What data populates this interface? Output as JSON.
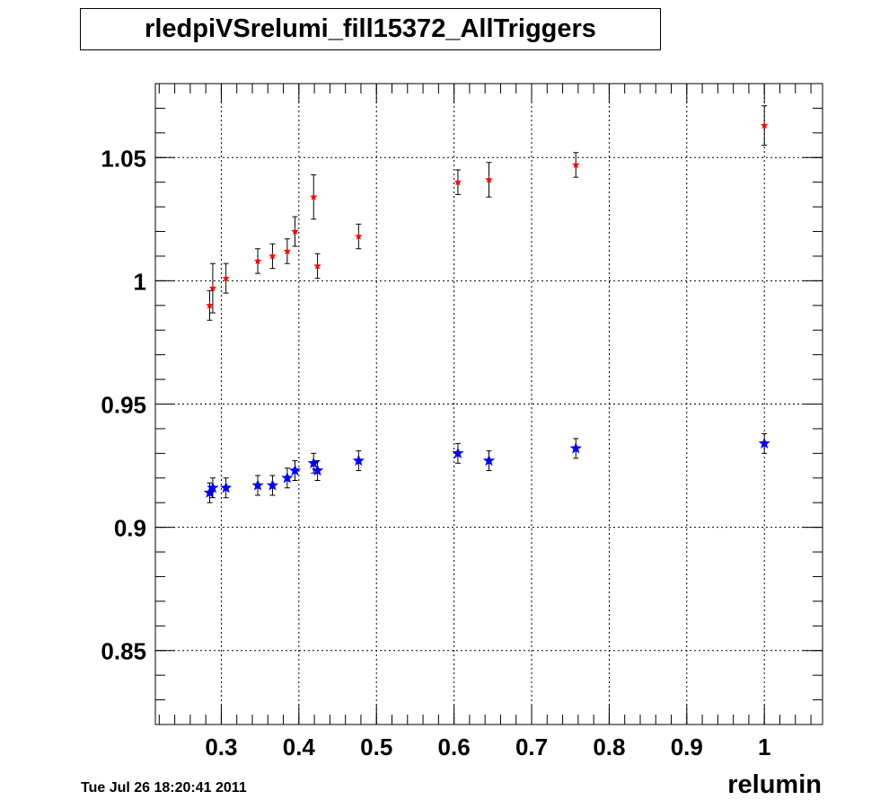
{
  "title": "rledpiVSrelumi_fill15372_AllTriggers",
  "timestamp": "Tue Jul 26 18:20:41 2011",
  "chart_data": {
    "type": "scatter",
    "title": "rledpiVSrelumi_fill15372_AllTriggers",
    "xlabel": "relumin",
    "ylabel": "",
    "xlim": [
      0.215,
      1.075
    ],
    "ylim": [
      0.82,
      1.08
    ],
    "xticks": [
      "0.3",
      "0.4",
      "0.5",
      "0.6",
      "0.7",
      "0.8",
      "0.9",
      "1"
    ],
    "yticks": [
      "0.85",
      "0.9",
      "0.95",
      "1",
      "1.05"
    ],
    "grid": true,
    "series": [
      {
        "color": "#ff0000",
        "marker": "small-star",
        "points": [
          {
            "x": 0.285,
            "y": 0.99,
            "err": 0.006
          },
          {
            "x": 0.289,
            "y": 0.997,
            "err": 0.01
          },
          {
            "x": 0.306,
            "y": 1.001,
            "err": 0.006
          },
          {
            "x": 0.347,
            "y": 1.008,
            "err": 0.005
          },
          {
            "x": 0.366,
            "y": 1.01,
            "err": 0.005
          },
          {
            "x": 0.385,
            "y": 1.012,
            "err": 0.005
          },
          {
            "x": 0.395,
            "y": 1.02,
            "err": 0.006
          },
          {
            "x": 0.419,
            "y": 1.034,
            "err": 0.009
          },
          {
            "x": 0.424,
            "y": 1.006,
            "err": 0.005
          },
          {
            "x": 0.477,
            "y": 1.018,
            "err": 0.005
          },
          {
            "x": 0.605,
            "y": 1.04,
            "err": 0.005
          },
          {
            "x": 0.645,
            "y": 1.041,
            "err": 0.007
          },
          {
            "x": 0.757,
            "y": 1.047,
            "err": 0.005
          },
          {
            "x": 1.0,
            "y": 1.063,
            "err": 0.008
          }
        ]
      },
      {
        "color": "#0000ff",
        "marker": "star",
        "points": [
          {
            "x": 0.285,
            "y": 0.914,
            "err": 0.004
          },
          {
            "x": 0.289,
            "y": 0.916,
            "err": 0.004
          },
          {
            "x": 0.306,
            "y": 0.916,
            "err": 0.004
          },
          {
            "x": 0.347,
            "y": 0.917,
            "err": 0.004
          },
          {
            "x": 0.366,
            "y": 0.917,
            "err": 0.004
          },
          {
            "x": 0.385,
            "y": 0.92,
            "err": 0.004
          },
          {
            "x": 0.395,
            "y": 0.923,
            "err": 0.004
          },
          {
            "x": 0.419,
            "y": 0.926,
            "err": 0.004
          },
          {
            "x": 0.424,
            "y": 0.923,
            "err": 0.004
          },
          {
            "x": 0.477,
            "y": 0.927,
            "err": 0.004
          },
          {
            "x": 0.605,
            "y": 0.93,
            "err": 0.004
          },
          {
            "x": 0.645,
            "y": 0.927,
            "err": 0.004
          },
          {
            "x": 0.757,
            "y": 0.932,
            "err": 0.004
          },
          {
            "x": 1.0,
            "y": 0.934,
            "err": 0.004
          }
        ]
      }
    ]
  }
}
